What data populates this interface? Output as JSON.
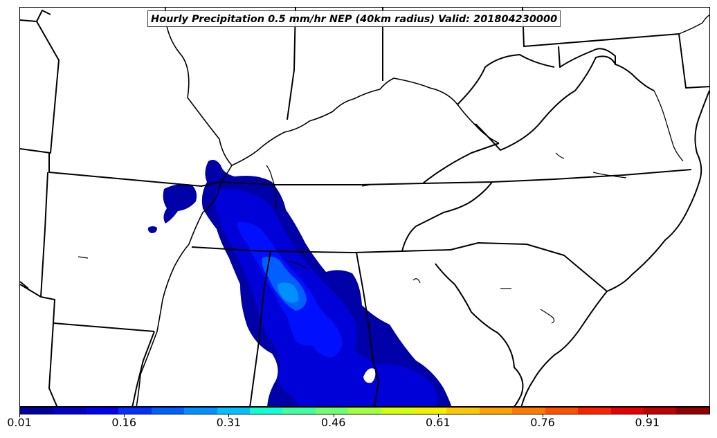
{
  "title": "Hourly Precipitation 0.5 mm/hr NEP (40km radius) Valid: 201804230000",
  "colorbar": {
    "colors": [
      "#00009a",
      "#0000c8",
      "#0000f0",
      "#0030ff",
      "#0060ff",
      "#0090ff",
      "#00c0ff",
      "#10ffd0",
      "#40ffa0",
      "#70ff70",
      "#a0ff40",
      "#d0ff10",
      "#f0f000",
      "#ffc800",
      "#ffa000",
      "#ff7800",
      "#ff5000",
      "#ff2000",
      "#e80000",
      "#c00000",
      "#900000"
    ],
    "tick_labels": [
      "0.01",
      "0.16",
      "0.31",
      "0.46",
      "0.61",
      "0.76",
      "0.91"
    ],
    "min": 0.01,
    "max": 1.0
  }
}
